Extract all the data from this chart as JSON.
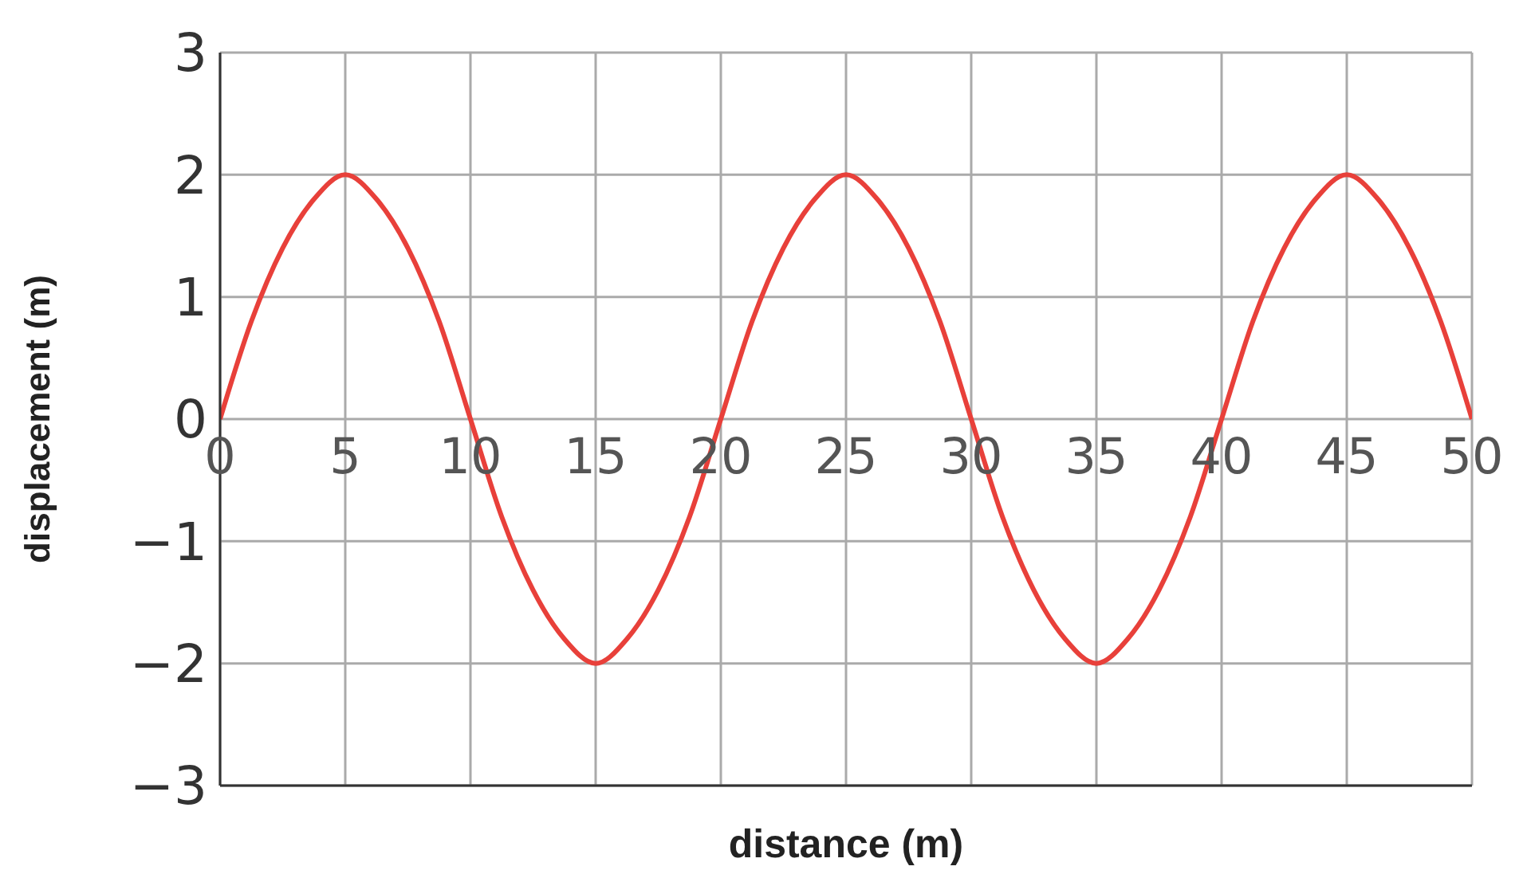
{
  "chart_data": {
    "type": "line",
    "xlabel": "distance (m)",
    "ylabel": "displacement (m)",
    "x": [
      0,
      1.25,
      2.5,
      3.75,
      5,
      6.25,
      7.5,
      8.75,
      10,
      11.25,
      12.5,
      13.75,
      15,
      16.25,
      17.5,
      18.75,
      20,
      21.25,
      22.5,
      23.75,
      25,
      26.25,
      27.5,
      28.75,
      30,
      31.25,
      32.5,
      33.75,
      35,
      36.25,
      37.5,
      38.75,
      40,
      41.25,
      42.5,
      43.75,
      45,
      46.25,
      47.5,
      48.75,
      50
    ],
    "series": [
      {
        "color": "#e8403a",
        "values": [
          0,
          0.8,
          1.4,
          1.8,
          2,
          1.8,
          1.4,
          0.8,
          0,
          -0.8,
          -1.4,
          -1.8,
          -2,
          -1.8,
          -1.4,
          -0.8,
          0,
          0.8,
          1.4,
          1.8,
          2,
          1.8,
          1.4,
          0.8,
          0,
          -0.8,
          -1.4,
          -1.8,
          -2,
          -1.8,
          -1.4,
          -0.8,
          0,
          0.8,
          1.4,
          1.8,
          2,
          1.8,
          1.4,
          0.8,
          0
        ]
      }
    ],
    "xlim": [
      0,
      50
    ],
    "xticks": [
      0,
      5,
      10,
      15,
      20,
      25,
      30,
      35,
      40,
      45,
      50
    ],
    "ylim": [
      -3,
      3
    ],
    "yticks": [
      {
        "value": -3,
        "label": "−3"
      },
      {
        "value": -2,
        "label": "−2"
      },
      {
        "value": -1,
        "label": "−1"
      },
      0,
      1,
      2,
      3
    ],
    "grid": true,
    "legend": false,
    "marker": "none",
    "line_style": "solid"
  }
}
